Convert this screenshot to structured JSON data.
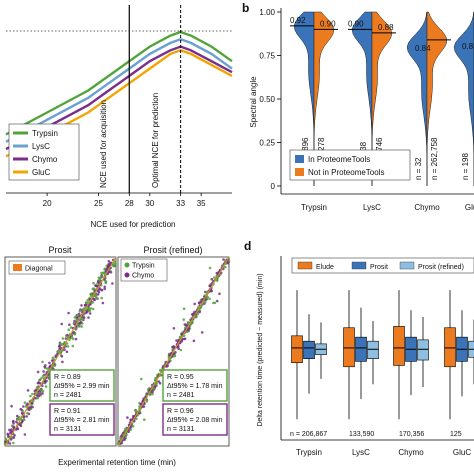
{
  "chart_data": [
    {
      "panel": "a",
      "type": "line",
      "xlabel": "NCE used for prediction",
      "ylabel": "",
      "x_ticks": [
        20,
        25,
        28,
        30,
        33,
        35
      ],
      "xlim": [
        16,
        38
      ],
      "ylim": [
        0.5,
        1.0
      ],
      "annotations": [
        "NCE used for acquisition",
        "Optimal  NCE for prediction"
      ],
      "acquisition_nce": 28,
      "optimal_nce": 33,
      "legend_placement": "bottom-left",
      "series": [
        {
          "name": "Trypsin",
          "color": "#52a43a",
          "x": [
            16,
            20,
            24,
            26,
            28,
            30,
            32,
            33,
            34,
            36,
            38
          ],
          "y": [
            0.66,
            0.72,
            0.78,
            0.82,
            0.86,
            0.9,
            0.93,
            0.94,
            0.93,
            0.9,
            0.86
          ]
        },
        {
          "name": "LysC",
          "color": "#6aa1cf",
          "x": [
            16,
            20,
            24,
            26,
            28,
            30,
            32,
            33,
            34,
            36,
            38
          ],
          "y": [
            0.64,
            0.7,
            0.76,
            0.8,
            0.84,
            0.88,
            0.91,
            0.92,
            0.91,
            0.88,
            0.84
          ]
        },
        {
          "name": "Chymo",
          "color": "#7b2d8a",
          "x": [
            16,
            20,
            24,
            26,
            28,
            30,
            32,
            33,
            34,
            36,
            38
          ],
          "y": [
            0.62,
            0.68,
            0.74,
            0.78,
            0.82,
            0.86,
            0.89,
            0.9,
            0.89,
            0.86,
            0.83
          ]
        },
        {
          "name": "GluC",
          "color": "#f2a500",
          "x": [
            16,
            20,
            24,
            26,
            28,
            30,
            32,
            33,
            34,
            36,
            38
          ],
          "y": [
            0.6,
            0.66,
            0.72,
            0.76,
            0.8,
            0.84,
            0.88,
            0.89,
            0.88,
            0.85,
            0.82
          ]
        }
      ]
    },
    {
      "panel": "b",
      "type": "violin",
      "ylabel": "Spectral angle",
      "ylim": [
        0,
        1
      ],
      "y_ticks": [
        "0",
        "0.25",
        "0.50",
        "0.75",
        "1.00"
      ],
      "y_tick_values": [
        0,
        0.25,
        0.5,
        0.75,
        1
      ],
      "categories": [
        "Trypsin",
        "LysC",
        "Chymo",
        "GluC"
      ],
      "legend": [
        {
          "name": "In ProteomeTools",
          "color": "#3a73b8"
        },
        {
          "name": "Not in ProteomeTools",
          "color": "#ec7b1f"
        }
      ],
      "legend_placement": "bottom-left",
      "medians_in": [
        "0.92",
        "0.90",
        "",
        ""
      ],
      "medians_in_values": [
        0.92,
        0.9,
        null,
        null
      ],
      "medians_not": [
        "0.90",
        "0.88",
        "0.84",
        "0.85"
      ],
      "medians_not_values": [
        0.9,
        0.88,
        0.84,
        0.85
      ],
      "n_in": [
        "n = 121,896",
        "n = 58,538",
        "n = 32",
        "n = 198"
      ],
      "n_not": [
        "n = 242,278",
        "n = 243,746",
        "n = 262,758",
        ""
      ]
    },
    {
      "panel": "c",
      "type": "scatter",
      "titles": [
        "Prosit",
        "Prosit (refined)"
      ],
      "xlabel": "Experimental retention time (min)",
      "legend_left": "Diagonal",
      "legend_right": [
        "Trypsin",
        "Chymo"
      ],
      "stats": [
        {
          "r": "R = 0.89",
          "dt": "Δt95% = 2.99 min",
          "n": "n = 2481",
          "color": "#52a43a"
        },
        {
          "r": "R = 0.91",
          "dt": "Δt95% = 2.81 min",
          "n": "n = 3131",
          "color": "#7b2d8a"
        },
        {
          "r": "R = 0.95",
          "dt": "Δt95% = 1.78 min",
          "n": "n = 2481",
          "color": "#52a43a"
        },
        {
          "r": "R = 0.96",
          "dt": "Δt95% = 2.08 min",
          "n": "n = 3131",
          "color": "#7b2d8a"
        }
      ]
    },
    {
      "panel": "d",
      "type": "box",
      "ylabel": "Delta retention time (predicted − measured) (min)",
      "categories": [
        "Trypsin",
        "LysC",
        "Chymo",
        "GluC"
      ],
      "legend": [
        {
          "name": "Elude",
          "color": "#ec7b1f"
        },
        {
          "name": "Prosit",
          "color": "#3a73b8"
        },
        {
          "name": "Prosit (refined)",
          "color": "#8fbfe0"
        }
      ],
      "n_labels": [
        "n = 206,867",
        "133,590",
        "170,356",
        "125"
      ],
      "ylim": [
        -6,
        5
      ],
      "boxes": [
        [
          [
            -5.2,
            -1.0,
            0.1,
            1.0,
            4.4
          ],
          [
            -3.3,
            -0.7,
            0.1,
            0.6,
            2.6
          ],
          [
            -2.2,
            -0.4,
            0.0,
            0.4,
            2.0
          ]
        ],
        [
          [
            -5.2,
            -1.3,
            0.1,
            1.6,
            4.4
          ],
          [
            -3.7,
            -0.9,
            0.1,
            0.9,
            3.1
          ],
          [
            -2.6,
            -0.7,
            0.0,
            0.6,
            2.1
          ]
        ],
        [
          [
            -5.2,
            -1.2,
            0.1,
            1.7,
            4.4
          ],
          [
            -3.4,
            -0.9,
            0.0,
            0.9,
            2.9
          ],
          [
            -2.8,
            -0.8,
            0.0,
            0.7,
            2.4
          ]
        ],
        [
          [
            -5.2,
            -1.3,
            0.1,
            1.6,
            4.4
          ],
          [
            -3.5,
            -0.9,
            0.0,
            0.9,
            2.9
          ],
          [
            -2.6,
            -0.6,
            0.0,
            0.6,
            2.2
          ]
        ]
      ]
    }
  ]
}
